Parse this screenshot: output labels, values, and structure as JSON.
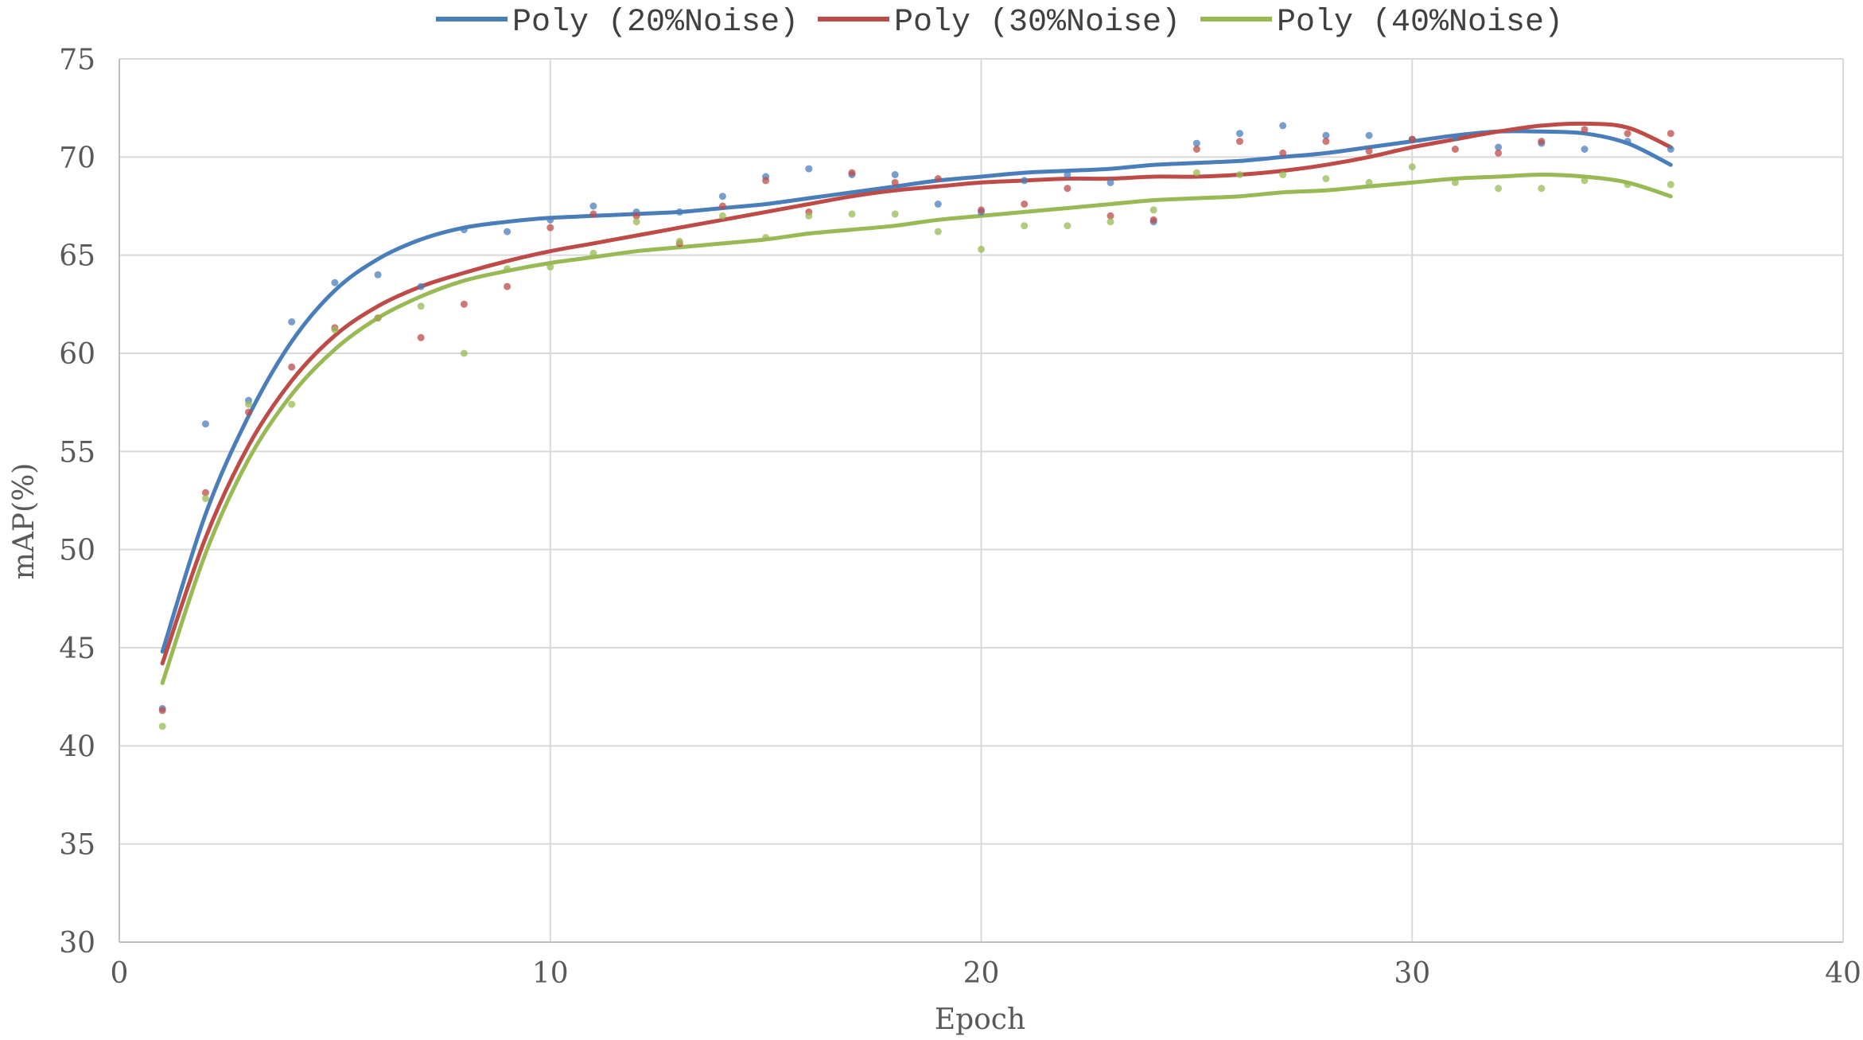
{
  "chart_data": {
    "type": "scatter",
    "title": "",
    "xlabel": "Epoch",
    "ylabel": "mAP(%)",
    "xlim": [
      0,
      40
    ],
    "ylim": [
      30,
      75
    ],
    "x_ticks": [
      0,
      10,
      20,
      30,
      40
    ],
    "y_ticks": [
      30,
      35,
      40,
      45,
      50,
      55,
      60,
      65,
      70,
      75
    ],
    "grid": true,
    "legend_position": "top",
    "series": [
      {
        "name": "Poly (20%Noise)",
        "color": "#4a7ebb",
        "points": [
          [
            1,
            41.9
          ],
          [
            2,
            56.4
          ],
          [
            3,
            57.6
          ],
          [
            4,
            61.6
          ],
          [
            5,
            63.6
          ],
          [
            6,
            64.0
          ],
          [
            7,
            63.4
          ],
          [
            8,
            66.3
          ],
          [
            9,
            66.2
          ],
          [
            10,
            66.8
          ],
          [
            11,
            67.5
          ],
          [
            12,
            67.2
          ],
          [
            13,
            67.2
          ],
          [
            14,
            68.0
          ],
          [
            15,
            69.0
          ],
          [
            16,
            69.4
          ],
          [
            17,
            69.1
          ],
          [
            18,
            69.1
          ],
          [
            19,
            67.6
          ],
          [
            20,
            67.2
          ],
          [
            21,
            68.8
          ],
          [
            22,
            69.1
          ],
          [
            23,
            68.7
          ],
          [
            24,
            66.7
          ],
          [
            25,
            70.7
          ],
          [
            26,
            71.2
          ],
          [
            27,
            71.6
          ],
          [
            28,
            71.1
          ],
          [
            29,
            71.1
          ],
          [
            30,
            70.9
          ],
          [
            31,
            71.0
          ],
          [
            32,
            70.5
          ],
          [
            33,
            70.7
          ],
          [
            34,
            70.4
          ],
          [
            35,
            70.8
          ],
          [
            36,
            70.4
          ]
        ],
        "fit": [
          [
            1,
            44.8
          ],
          [
            2,
            51.8
          ],
          [
            3,
            56.8
          ],
          [
            4,
            60.6
          ],
          [
            5,
            63.2
          ],
          [
            6,
            64.8
          ],
          [
            7,
            65.8
          ],
          [
            8,
            66.4
          ],
          [
            9,
            66.7
          ],
          [
            10,
            66.9
          ],
          [
            11,
            67.0
          ],
          [
            12,
            67.1
          ],
          [
            13,
            67.2
          ],
          [
            14,
            67.4
          ],
          [
            15,
            67.6
          ],
          [
            16,
            67.9
          ],
          [
            17,
            68.2
          ],
          [
            18,
            68.5
          ],
          [
            19,
            68.8
          ],
          [
            20,
            69.0
          ],
          [
            21,
            69.2
          ],
          [
            22,
            69.3
          ],
          [
            23,
            69.4
          ],
          [
            24,
            69.6
          ],
          [
            25,
            69.7
          ],
          [
            26,
            69.8
          ],
          [
            27,
            70.0
          ],
          [
            28,
            70.2
          ],
          [
            29,
            70.5
          ],
          [
            30,
            70.8
          ],
          [
            31,
            71.1
          ],
          [
            32,
            71.3
          ],
          [
            33,
            71.3
          ],
          [
            34,
            71.2
          ],
          [
            35,
            70.7
          ],
          [
            36,
            69.6
          ]
        ]
      },
      {
        "name": "Poly (30%Noise)",
        "color": "#be4b48",
        "points": [
          [
            1,
            41.8
          ],
          [
            2,
            52.9
          ],
          [
            3,
            57.0
          ],
          [
            4,
            59.3
          ],
          [
            5,
            61.3
          ],
          [
            6,
            61.8
          ],
          [
            7,
            60.8
          ],
          [
            8,
            62.5
          ],
          [
            9,
            63.4
          ],
          [
            10,
            66.4
          ],
          [
            11,
            67.1
          ],
          [
            12,
            67.0
          ],
          [
            13,
            65.6
          ],
          [
            14,
            67.5
          ],
          [
            15,
            68.8
          ],
          [
            16,
            67.2
          ],
          [
            17,
            69.2
          ],
          [
            18,
            68.7
          ],
          [
            19,
            68.9
          ],
          [
            20,
            67.3
          ],
          [
            21,
            67.6
          ],
          [
            22,
            68.4
          ],
          [
            23,
            67.0
          ],
          [
            24,
            66.8
          ],
          [
            25,
            70.4
          ],
          [
            26,
            70.8
          ],
          [
            27,
            70.2
          ],
          [
            28,
            70.8
          ],
          [
            29,
            70.3
          ],
          [
            30,
            70.9
          ],
          [
            31,
            70.4
          ],
          [
            32,
            70.2
          ],
          [
            33,
            70.8
          ],
          [
            34,
            71.4
          ],
          [
            35,
            71.2
          ],
          [
            36,
            71.2
          ]
        ],
        "fit": [
          [
            1,
            44.2
          ],
          [
            2,
            50.6
          ],
          [
            3,
            55.3
          ],
          [
            4,
            58.6
          ],
          [
            5,
            60.9
          ],
          [
            6,
            62.4
          ],
          [
            7,
            63.4
          ],
          [
            8,
            64.1
          ],
          [
            9,
            64.7
          ],
          [
            10,
            65.2
          ],
          [
            11,
            65.6
          ],
          [
            12,
            66.0
          ],
          [
            13,
            66.4
          ],
          [
            14,
            66.8
          ],
          [
            15,
            67.2
          ],
          [
            16,
            67.6
          ],
          [
            17,
            68.0
          ],
          [
            18,
            68.3
          ],
          [
            19,
            68.5
          ],
          [
            20,
            68.7
          ],
          [
            21,
            68.8
          ],
          [
            22,
            68.9
          ],
          [
            23,
            68.9
          ],
          [
            24,
            69.0
          ],
          [
            25,
            69.0
          ],
          [
            26,
            69.1
          ],
          [
            27,
            69.3
          ],
          [
            28,
            69.6
          ],
          [
            29,
            70.0
          ],
          [
            30,
            70.5
          ],
          [
            31,
            70.9
          ],
          [
            32,
            71.3
          ],
          [
            33,
            71.6
          ],
          [
            34,
            71.7
          ],
          [
            35,
            71.5
          ],
          [
            36,
            70.5
          ]
        ]
      },
      {
        "name": "Poly (40%Noise)",
        "color": "#98b954",
        "points": [
          [
            1,
            41.0
          ],
          [
            2,
            52.6
          ],
          [
            3,
            57.4
          ],
          [
            4,
            57.4
          ],
          [
            5,
            61.2
          ],
          [
            6,
            61.8
          ],
          [
            7,
            62.4
          ],
          [
            8,
            60.0
          ],
          [
            9,
            64.3
          ],
          [
            10,
            64.4
          ],
          [
            11,
            65.1
          ],
          [
            12,
            66.7
          ],
          [
            13,
            65.7
          ],
          [
            14,
            67.0
          ],
          [
            15,
            65.9
          ],
          [
            16,
            67.0
          ],
          [
            17,
            67.1
          ],
          [
            18,
            67.1
          ],
          [
            19,
            66.2
          ],
          [
            20,
            65.3
          ],
          [
            21,
            66.5
          ],
          [
            22,
            66.5
          ],
          [
            23,
            66.7
          ],
          [
            24,
            67.3
          ],
          [
            25,
            69.2
          ],
          [
            26,
            69.1
          ],
          [
            27,
            69.1
          ],
          [
            28,
            68.9
          ],
          [
            29,
            68.7
          ],
          [
            30,
            69.5
          ],
          [
            31,
            68.7
          ],
          [
            32,
            68.4
          ],
          [
            33,
            68.4
          ],
          [
            34,
            68.8
          ],
          [
            35,
            68.6
          ],
          [
            36,
            68.6
          ]
        ],
        "fit": [
          [
            1,
            43.2
          ],
          [
            2,
            49.8
          ],
          [
            3,
            54.6
          ],
          [
            4,
            57.9
          ],
          [
            5,
            60.2
          ],
          [
            6,
            61.8
          ],
          [
            7,
            62.9
          ],
          [
            8,
            63.7
          ],
          [
            9,
            64.2
          ],
          [
            10,
            64.6
          ],
          [
            11,
            64.9
          ],
          [
            12,
            65.2
          ],
          [
            13,
            65.4
          ],
          [
            14,
            65.6
          ],
          [
            15,
            65.8
          ],
          [
            16,
            66.1
          ],
          [
            17,
            66.3
          ],
          [
            18,
            66.5
          ],
          [
            19,
            66.8
          ],
          [
            20,
            67.0
          ],
          [
            21,
            67.2
          ],
          [
            22,
            67.4
          ],
          [
            23,
            67.6
          ],
          [
            24,
            67.8
          ],
          [
            25,
            67.9
          ],
          [
            26,
            68.0
          ],
          [
            27,
            68.2
          ],
          [
            28,
            68.3
          ],
          [
            29,
            68.5
          ],
          [
            30,
            68.7
          ],
          [
            31,
            68.9
          ],
          [
            32,
            69.0
          ],
          [
            33,
            69.1
          ],
          [
            34,
            69.0
          ],
          [
            35,
            68.7
          ],
          [
            36,
            68.0
          ]
        ]
      }
    ]
  }
}
